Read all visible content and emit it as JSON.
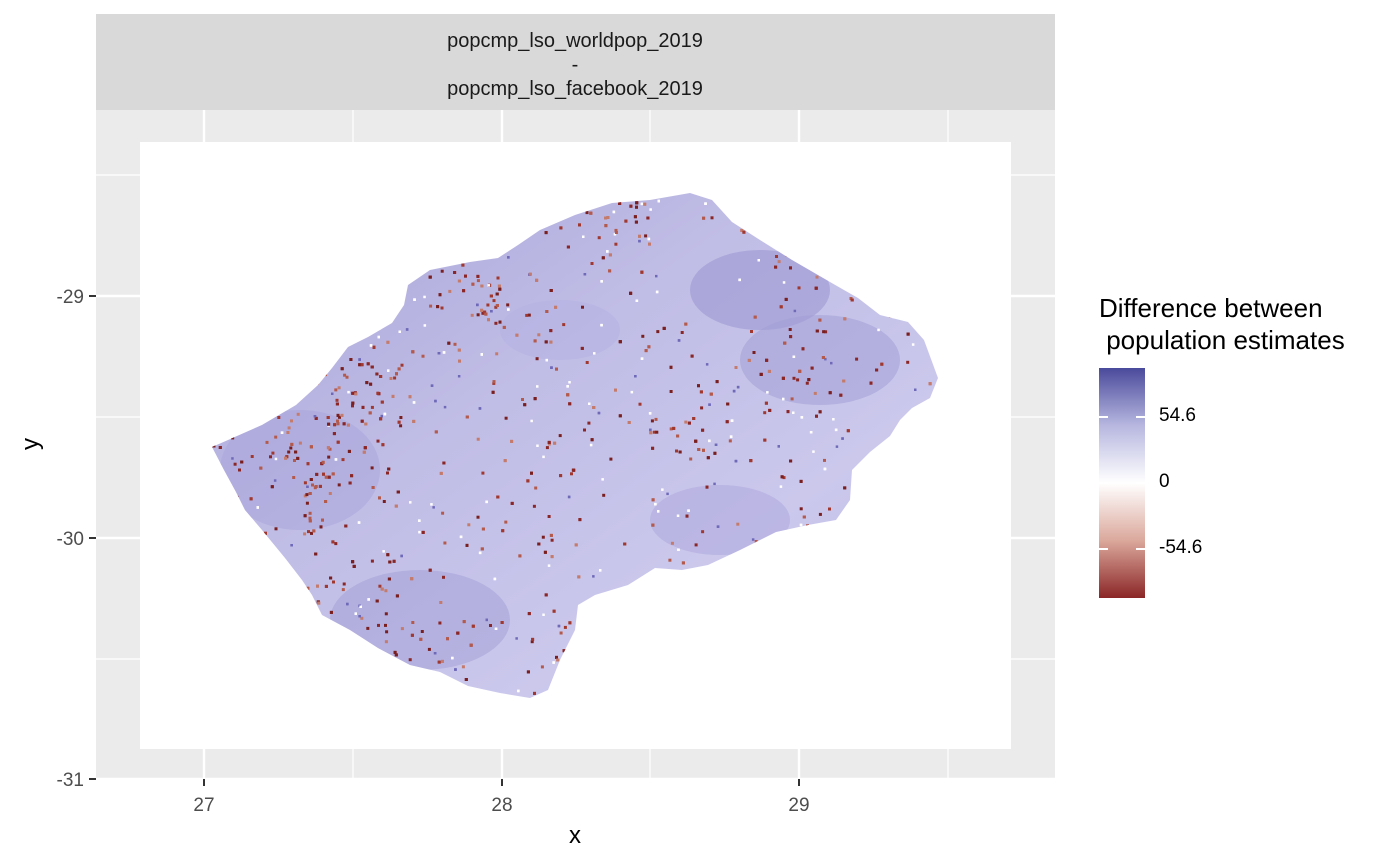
{
  "facet_strip": {
    "line1": "popcmp_lso_worldpop_2019",
    "line2": "-",
    "line3": "popcmp_lso_facebook_2019"
  },
  "axes": {
    "xlabel": "x",
    "ylabel": "y",
    "xticks": [
      "27",
      "28",
      "29"
    ],
    "yticks": [
      "-29",
      "-30",
      "-31"
    ]
  },
  "legend": {
    "title": "Difference between\n population estimates",
    "labels": [
      "54.6",
      "0",
      "-54.6"
    ]
  },
  "colors": {
    "panel_background": "#ebebeb",
    "grid": "#ffffff",
    "high": "#4a4a9c",
    "mid": "#ffffff",
    "low": "#8b2626"
  },
  "chart_data": {
    "type": "heatmap",
    "xlabel": "x",
    "ylabel": "y",
    "xticks": [
      27,
      28,
      29
    ],
    "yticks": [
      -29,
      -30,
      -31
    ],
    "xlim": [
      26.65,
      29.85
    ],
    "ylim": [
      -31.0,
      -28.5
    ],
    "legend": {
      "title": "Difference between population estimates",
      "breaks": [
        54.6,
        0,
        -54.6
      ],
      "placement": "right"
    },
    "grid": true
  }
}
